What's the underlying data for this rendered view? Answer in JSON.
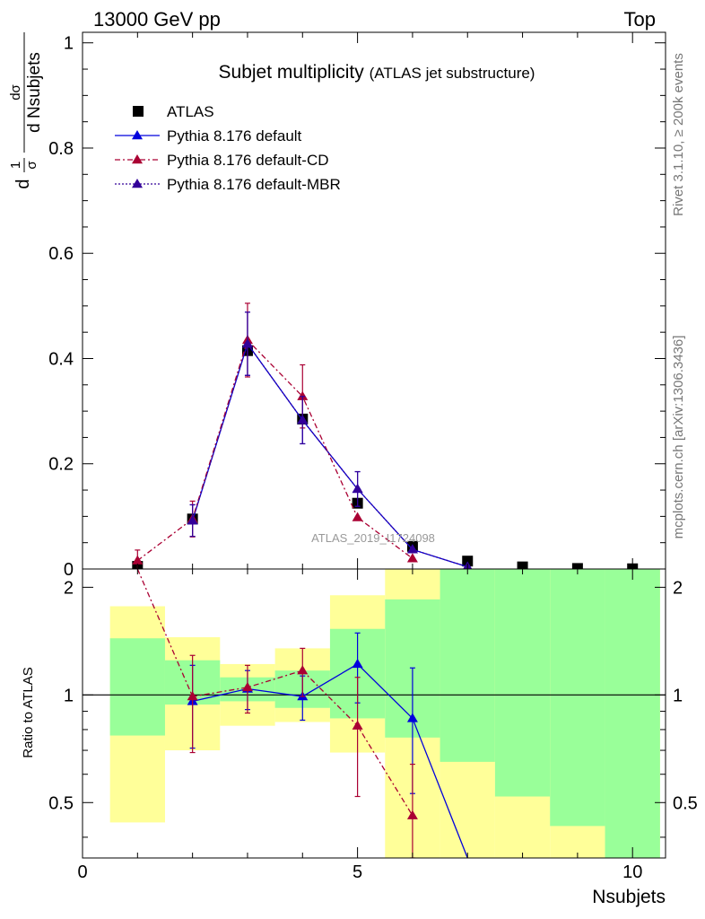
{
  "header": {
    "left": "13000 GeV pp",
    "right": "Top"
  },
  "title": {
    "main": "Subjet multiplicity",
    "sub": "(ATLAS jet substructure)"
  },
  "side_text": {
    "rivet": "Rivet 3.1.10, ≥ 200k events",
    "mcplots": "mcplots.cern.ch [arXiv:1306.3436]"
  },
  "watermark": "ATLAS_2019_I1724098",
  "colors": {
    "atlas": "#000000",
    "default": "#0000dd",
    "cd": "#aa0033",
    "mbr": "#330099",
    "band_inner": "#99ff99",
    "band_outer": "#ffff99"
  },
  "chart_data": [
    {
      "type": "line",
      "panel": "main",
      "ylabel": {
        "num1": "d",
        "num2": "1",
        "den": "σ",
        "frac_num": "dσ",
        "frac_den": "d Nsubjets"
      },
      "xlim": [
        0,
        10.6
      ],
      "ylim": [
        0,
        1.02
      ],
      "yticks": [
        0,
        0.2,
        0.4,
        0.6,
        0.8,
        1
      ],
      "ytick_labels": [
        "0",
        "0.2",
        "0.4",
        "0.6",
        "0.8",
        "1"
      ],
      "legend": {
        "position": "top-left",
        "entries": [
          "ATLAS",
          "Pythia 8.176 default",
          "Pythia 8.176 default-CD",
          "Pythia 8.176 default-MBR"
        ]
      },
      "series": [
        {
          "name": "ATLAS",
          "marker": "square",
          "x": [
            1,
            2,
            3,
            4,
            5,
            6,
            7,
            8,
            9,
            10
          ],
          "y": [
            0.005,
            0.095,
            0.415,
            0.285,
            0.125,
            0.043,
            0.015,
            0.004,
            0.001,
            0.0004
          ]
        },
        {
          "name": "Pythia 8.176 default",
          "marker": "triangle",
          "line": "solid",
          "x": [
            2,
            3,
            4,
            5,
            6,
            7
          ],
          "y": [
            0.092,
            0.428,
            0.283,
            0.152,
            0.037,
            0.004
          ],
          "yerr": [
            0.03,
            0.06,
            0.045,
            0.033,
            0.0,
            0.0
          ]
        },
        {
          "name": "Pythia 8.176 default-CD",
          "marker": "triangle",
          "line": "dashdot",
          "x": [
            1,
            2,
            3,
            4,
            5,
            6
          ],
          "y": [
            0.016,
            0.095,
            0.435,
            0.328,
            0.098,
            0.02
          ],
          "yerr": [
            0.02,
            0.034,
            0.07,
            0.06,
            0.0,
            0.0
          ]
        },
        {
          "name": "Pythia 8.176 default-MBR",
          "marker": "triangle",
          "line": "dotted",
          "x": [
            2,
            3,
            4,
            5,
            6,
            7
          ],
          "y": [
            0.092,
            0.428,
            0.283,
            0.152,
            0.037,
            0.004
          ],
          "yerr": [
            0.03,
            0.06,
            0.045,
            0.033,
            0.0,
            0.0
          ]
        }
      ]
    },
    {
      "type": "line",
      "panel": "ratio",
      "xlabel": "Nsubjets",
      "ylabel": "Ratio to ATLAS",
      "xlim": [
        0,
        10.6
      ],
      "ylim": [
        0.35,
        2.25
      ],
      "xticks": [
        0,
        5,
        10
      ],
      "xtick_labels": [
        "0",
        "5",
        "10"
      ],
      "yticks": [
        0.5,
        1,
        2
      ],
      "ytick_labels": [
        "0.5",
        "1",
        "2"
      ],
      "bands": [
        {
          "x0": 0.5,
          "x1": 1.5,
          "inner": [
            0.77,
            1.44
          ],
          "outer": [
            0.44,
            1.77
          ]
        },
        {
          "x0": 1.5,
          "x1": 2.5,
          "inner": [
            0.94,
            1.25
          ],
          "outer": [
            0.7,
            1.45
          ]
        },
        {
          "x0": 2.5,
          "x1": 3.5,
          "inner": [
            0.96,
            1.12
          ],
          "outer": [
            0.82,
            1.22
          ]
        },
        {
          "x0": 3.5,
          "x1": 4.5,
          "inner": [
            0.92,
            1.17
          ],
          "outer": [
            0.84,
            1.35
          ]
        },
        {
          "x0": 4.5,
          "x1": 5.5,
          "inner": [
            0.86,
            1.53
          ],
          "outer": [
            0.69,
            1.9
          ]
        },
        {
          "x0": 5.5,
          "x1": 6.5,
          "inner": [
            0.76,
            1.85
          ],
          "outer": [
            0.0,
            2.25
          ]
        },
        {
          "x0": 6.5,
          "x1": 7.5,
          "inner": [
            0.0,
            2.25
          ],
          "outer": [
            0.0,
            2.25
          ]
        },
        {
          "x0": 7.5,
          "x1": 8.5,
          "inner": [
            0.0,
            2.25
          ],
          "outer": [
            0.0,
            2.25
          ]
        },
        {
          "x0": 8.5,
          "x1": 9.5,
          "inner": [
            0.0,
            2.25
          ],
          "outer": [
            0.0,
            2.25
          ]
        },
        {
          "x0": 9.5,
          "x1": 10.5,
          "inner": [
            0.0,
            2.25
          ],
          "outer": [
            0.0,
            2.25
          ]
        }
      ],
      "band_lower_edges": [
        {
          "x0": 6.5,
          "x1": 7.5,
          "outer_low": 0.65
        },
        {
          "x0": 7.5,
          "x1": 8.5,
          "outer_low": 0.52
        },
        {
          "x0": 8.5,
          "x1": 9.5,
          "outer_low": 0.43
        },
        {
          "x0": 9.5,
          "x1": 10.5,
          "outer_low": 0.35
        }
      ],
      "series": [
        {
          "name": "Pythia 8.176 default",
          "marker": "triangle",
          "line": "solid",
          "x": [
            2,
            3,
            4,
            5,
            6,
            7
          ],
          "y": [
            0.96,
            1.04,
            0.99,
            1.22,
            0.86,
            0.25
          ],
          "yerr": [
            0.25,
            0.13,
            0.14,
            0.27,
            0.33,
            0.0
          ]
        },
        {
          "name": "Pythia 8.176 default-CD",
          "marker": "triangle",
          "line": "dashdot",
          "x": [
            1,
            2,
            3,
            4,
            5,
            6
          ],
          "y": [
            2.25,
            0.99,
            1.05,
            1.17,
            0.82,
            0.46
          ],
          "yerr": [
            0.0,
            0.3,
            0.16,
            0.18,
            0.3,
            0.18
          ]
        }
      ]
    }
  ]
}
